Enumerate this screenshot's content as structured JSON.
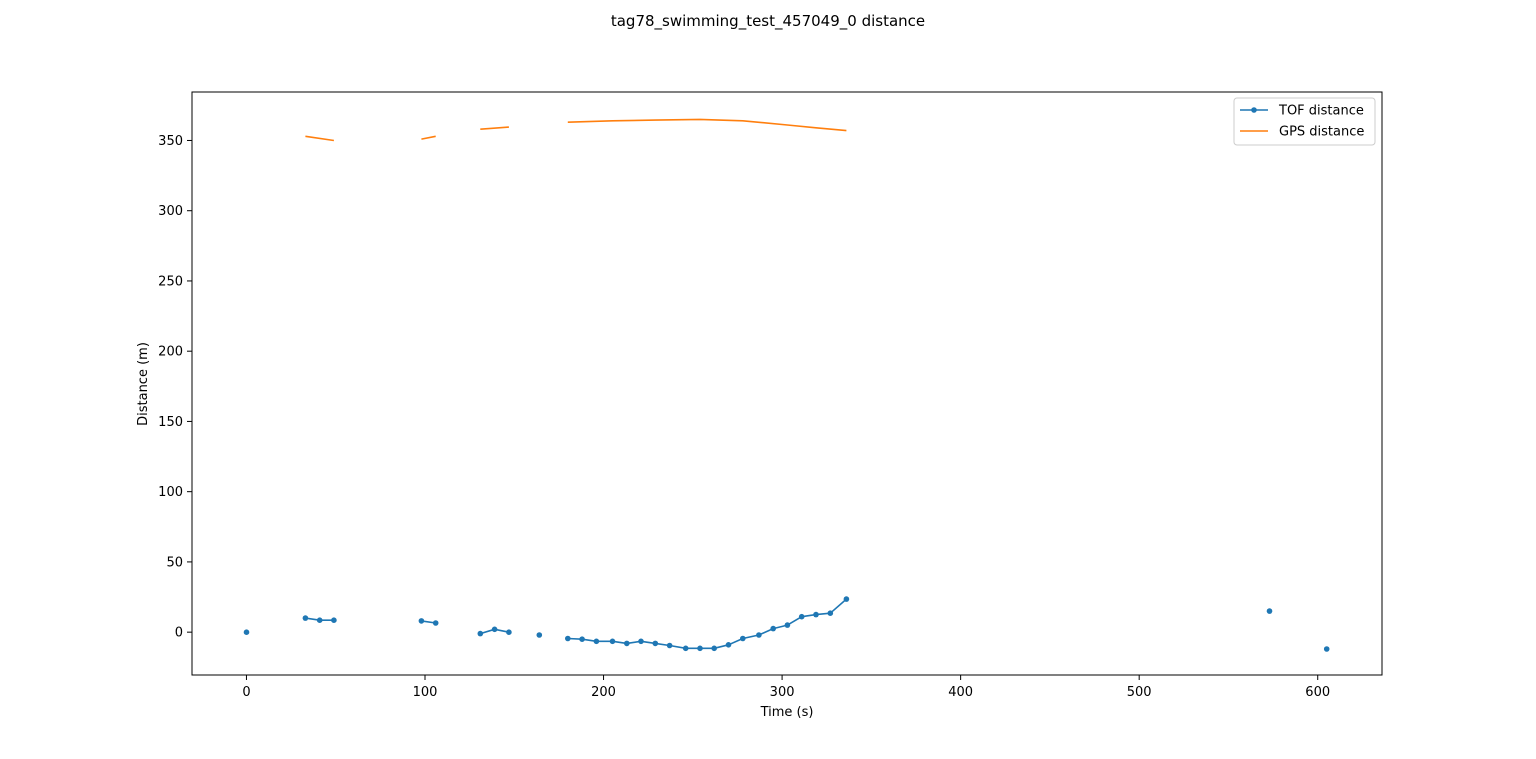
{
  "chart_data": {
    "type": "line",
    "title": "tag78_swimming_test_457049_0 distance",
    "xlabel": "Time (s)",
    "ylabel": "Distance (m)",
    "xlim": [
      -30.5,
      636
    ],
    "ylim": [
      -30.5,
      384.5
    ],
    "xticks": [
      0,
      100,
      200,
      300,
      400,
      500,
      600
    ],
    "yticks": [
      0,
      50,
      100,
      150,
      200,
      250,
      300,
      350
    ],
    "grid": false,
    "legend_position": "top-right",
    "series": [
      {
        "name": "TOF distance",
        "color": "#1f77b4",
        "marker": "dot",
        "points": [
          [
            0,
            0
          ],
          null,
          [
            33,
            10
          ],
          [
            41,
            8.5
          ],
          [
            49,
            8.5
          ],
          null,
          [
            98,
            8
          ],
          [
            106,
            6.5
          ],
          null,
          [
            131,
            -1
          ],
          [
            139,
            2
          ],
          [
            147,
            0
          ],
          null,
          [
            164,
            -2
          ],
          null,
          [
            180,
            -4.5
          ],
          [
            188,
            -5
          ],
          [
            196,
            -6.5
          ],
          [
            205,
            -6.5
          ],
          [
            213,
            -8
          ],
          [
            221,
            -6.5
          ],
          [
            229,
            -8
          ],
          [
            237,
            -9.5
          ],
          [
            246,
            -11.5
          ],
          [
            254,
            -11.5
          ],
          [
            262,
            -11.5
          ],
          [
            270,
            -9
          ],
          [
            278,
            -4.5
          ],
          [
            287,
            -2
          ],
          [
            295,
            2.5
          ],
          [
            303,
            5
          ],
          [
            311,
            11
          ],
          [
            319,
            12.5
          ],
          [
            327,
            13.5
          ],
          [
            336,
            23.5
          ],
          null,
          [
            573,
            15
          ],
          null,
          [
            605,
            -12
          ]
        ]
      },
      {
        "name": "GPS distance",
        "color": "#ff7f0e",
        "marker": "none",
        "points": [
          [
            33,
            353
          ],
          [
            49,
            350
          ],
          null,
          [
            98,
            351
          ],
          [
            106,
            353
          ],
          null,
          [
            131,
            358
          ],
          [
            147,
            359.5
          ],
          null,
          [
            180,
            363
          ],
          [
            205,
            364
          ],
          [
            229,
            364.5
          ],
          [
            254,
            365
          ],
          [
            278,
            364
          ],
          [
            303,
            361
          ],
          [
            319,
            359
          ],
          [
            336,
            357
          ]
        ]
      }
    ]
  }
}
